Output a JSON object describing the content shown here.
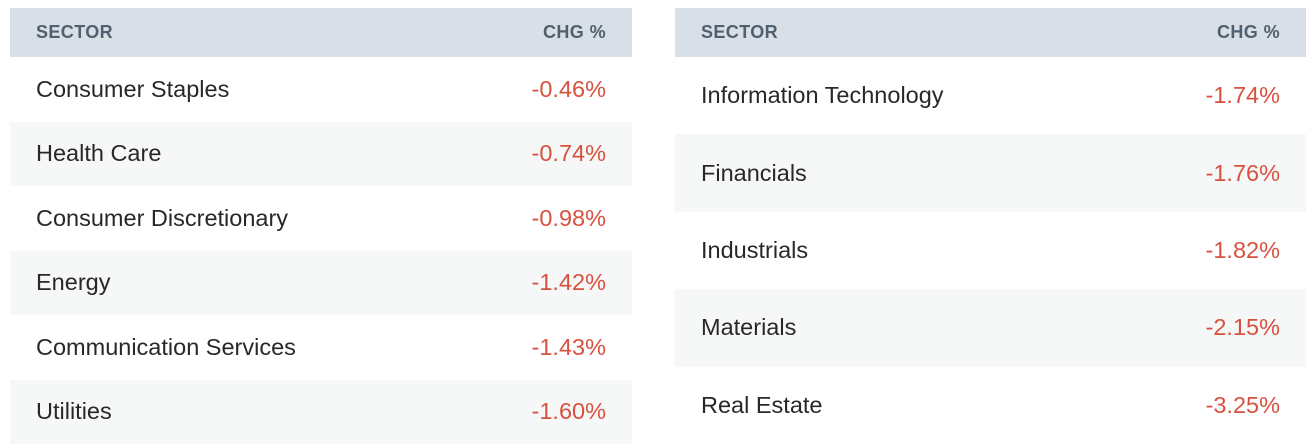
{
  "colors": {
    "header_background": "#d9dfe7",
    "header_text": "#50606f",
    "row_stripe": "#f6f7f7",
    "sector_text": "#28282a",
    "negative_change": "#d8513f",
    "page_background": "#ffffff"
  },
  "chart_data": [
    {
      "type": "table",
      "columns": [
        "SECTOR",
        "CHG %"
      ],
      "rows": [
        [
          "Consumer Staples",
          "-0.46%"
        ],
        [
          "Health Care",
          "-0.74%"
        ],
        [
          "Consumer Discretionary",
          "-0.98%"
        ],
        [
          "Energy",
          "-1.42%"
        ],
        [
          "Communication Services",
          "-1.43%"
        ],
        [
          "Utilities",
          "-1.60%"
        ]
      ]
    },
    {
      "type": "table",
      "columns": [
        "SECTOR",
        "CHG %"
      ],
      "rows": [
        [
          "Information Technology",
          "-1.74%"
        ],
        [
          "Financials",
          "-1.76%"
        ],
        [
          "Industrials",
          "-1.82%"
        ],
        [
          "Materials",
          "-2.15%"
        ],
        [
          "Real Estate",
          "-3.25%"
        ]
      ]
    }
  ]
}
